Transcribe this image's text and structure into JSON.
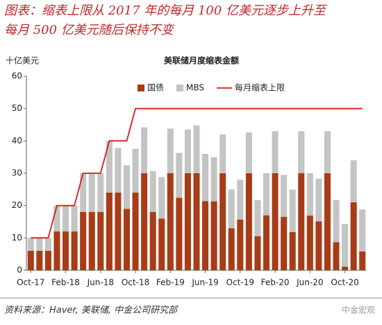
{
  "figure_title": [
    "图表：缩表上限从 2017 年的每月 100 亿美元逐步上升至",
    "每月 500 亿美元随后保持不变"
  ],
  "source": "资料来源：Haver, 美联储, 中金公司研究部",
  "watermark": "中金宏观",
  "chart_data": {
    "type": "bar",
    "stacked": true,
    "title": "美联储月度缩表金额",
    "y_unit_label": "十亿美元",
    "categories": [
      "Oct-17",
      null,
      null,
      null,
      "Feb-18",
      null,
      null,
      null,
      "Jun-18",
      null,
      null,
      null,
      "Oct-18",
      null,
      null,
      null,
      "Feb-19",
      null,
      null,
      null,
      "Jun-19",
      null,
      null,
      null,
      "Oct-19",
      null,
      null,
      null,
      "Feb-20",
      null,
      null,
      null,
      "Jun-20",
      null,
      null,
      null,
      "Oct-20",
      null,
      null
    ],
    "series": [
      {
        "name": "国债",
        "color": "#a83c17",
        "values": [
          6,
          6,
          6,
          12,
          12,
          12,
          18,
          18,
          18,
          24,
          24,
          19,
          24,
          30,
          18,
          16,
          30,
          22.4,
          30,
          30,
          21.4,
          21.3,
          30,
          13,
          15.7,
          30,
          10.5,
          17,
          30,
          16.5,
          11.8,
          30,
          16.9,
          15.1,
          30,
          8.7,
          1.1,
          21,
          5.8
        ]
      },
      {
        "name": "MBS",
        "color": "#c4c4c4",
        "values": [
          4,
          4,
          4,
          8,
          8,
          8,
          12,
          12,
          12,
          16,
          13.8,
          13.5,
          13.6,
          14.2,
          12.7,
          12.8,
          13.8,
          13.9,
          13.5,
          14.8,
          14.6,
          13.7,
          12,
          12,
          12.3,
          12.6,
          11.2,
          13,
          13,
          13,
          13.1,
          13,
          13.1,
          13.2,
          13,
          13,
          13.2,
          13,
          13
        ]
      },
      {
        "name": "每月缩表上限",
        "type": "line",
        "color": "#d7191c",
        "values": [
          10,
          10,
          10,
          20,
          20,
          20,
          30,
          30,
          30,
          40,
          40,
          40,
          50,
          50,
          50,
          50,
          50,
          50,
          50,
          50,
          50,
          50,
          50,
          50,
          50,
          50,
          50,
          50,
          50,
          50,
          50,
          50,
          50,
          50,
          50,
          50,
          50,
          50,
          50
        ]
      }
    ],
    "ylim": [
      0,
      60
    ],
    "yticks": [
      0,
      10,
      20,
      30,
      40,
      50,
      60
    ],
    "grid": false,
    "legend": "top"
  }
}
